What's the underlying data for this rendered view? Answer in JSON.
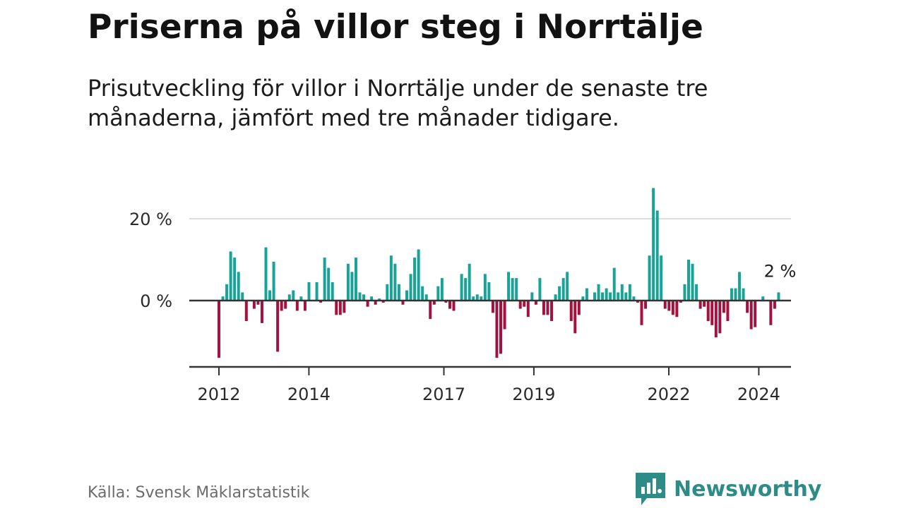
{
  "header": {
    "title": "Priserna på villor steg i Norrtälje",
    "subtitle": "Prisutveckling för villor i Norrtälje under de senaste tre månaderna, jämfört med tre månader tidigare."
  },
  "footer": {
    "source": "Källa: Svensk Mäklarstatistik",
    "brand": "Newsworthy"
  },
  "colors": {
    "positive": "#17a397",
    "negative": "#a3113f",
    "gridline": "#dddddd",
    "axis": "#333333",
    "brand": "#2d8c88"
  },
  "chart_data": {
    "type": "bar",
    "title": "Priserna på villor steg i Norrtälje",
    "xlabel": "",
    "ylabel": "",
    "ylim": [
      -16,
      29
    ],
    "yticks": [
      {
        "value": 0,
        "label": "0 %"
      },
      {
        "value": 20,
        "label": "20 %"
      }
    ],
    "xticks": [
      {
        "value": 2012.0,
        "label": "2012"
      },
      {
        "value": 2014.0,
        "label": "2014"
      },
      {
        "value": 2017.0,
        "label": "2017"
      },
      {
        "value": 2019.0,
        "label": "2019"
      },
      {
        "value": 2022.0,
        "label": "2022"
      },
      {
        "value": 2024.0,
        "label": "2024"
      }
    ],
    "x_start": 2012.0,
    "x_step": 0.0833,
    "values": [
      -14,
      1,
      4,
      12,
      10.5,
      7,
      2,
      -5,
      0,
      -2,
      -1,
      -5.5,
      13,
      2.5,
      9.5,
      -12.5,
      -2.5,
      -2,
      1.5,
      2.5,
      -2.5,
      1,
      -2.5,
      4.5,
      0,
      4.5,
      -0.5,
      10.5,
      8,
      4.5,
      -3.5,
      -3.5,
      -3,
      9,
      7,
      10.5,
      2,
      1.5,
      -1.5,
      1,
      -1,
      0.5,
      -0.5,
      4,
      11,
      9,
      4,
      -1,
      2.5,
      6.5,
      10.5,
      12.5,
      3.5,
      1.5,
      -4.5,
      -1,
      3.5,
      5.5,
      -0.5,
      -2,
      -2.5,
      0,
      6.5,
      5.5,
      9,
      1,
      1.5,
      1,
      6.5,
      4.5,
      -3,
      -14,
      -13,
      -7,
      7,
      5.5,
      5.5,
      -2,
      -1.5,
      -4,
      2,
      -1,
      5.5,
      -3.5,
      -3.5,
      -5,
      1.5,
      3.5,
      5.5,
      7,
      -5,
      -8,
      -3.5,
      1,
      3,
      0,
      2,
      4,
      2,
      3,
      2,
      8,
      2,
      4,
      2,
      4,
      1,
      -0.5,
      -6,
      -2,
      11,
      27.5,
      22,
      11,
      -2,
      -2.5,
      -3.5,
      -4,
      -0.5,
      4,
      10,
      9,
      4,
      -2,
      -1.5,
      -5,
      -6,
      -9,
      -8,
      -3,
      -5,
      3,
      3,
      7,
      3,
      -3,
      -7,
      -6.5,
      0,
      1,
      0,
      -6,
      -2,
      2
    ],
    "annotations": [
      {
        "text": "2 %",
        "series_index": "last"
      }
    ]
  }
}
